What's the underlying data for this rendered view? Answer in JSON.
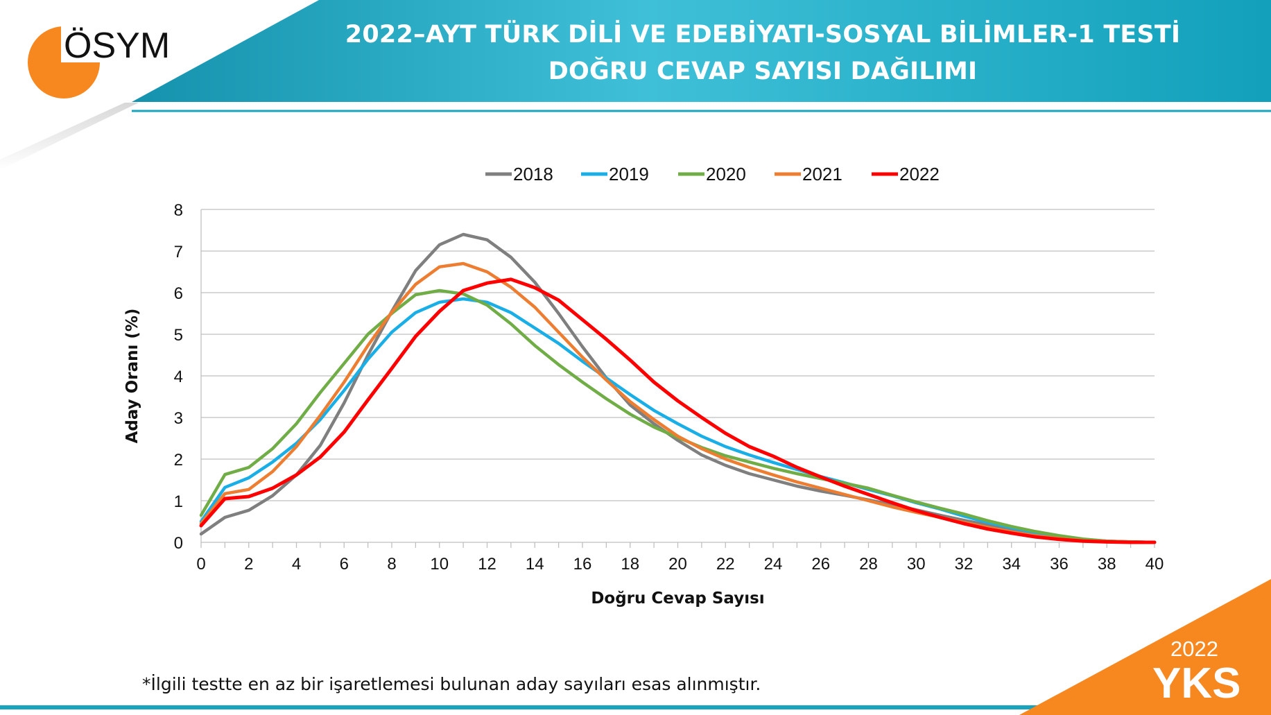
{
  "header": {
    "logo_text": "ÖSYM",
    "title_line1": "2022–AYT TÜRK DİLİ VE EDEBİYATI-SOSYAL BİLİMLER-1 TESTİ",
    "title_line2": "DOĞRU CEVAP SAYISI DAĞILIMI"
  },
  "footer": {
    "footnote": "*İlgili testte en az bir işaretlemesi bulunan aday sayıları esas alınmıştır.",
    "yks_year": "2022",
    "yks_label": "YKS"
  },
  "colors": {
    "header_teal": "#1aa3bd",
    "accent_orange": "#f7871f",
    "bottom_line": "#1aa3bd"
  },
  "chart_data": {
    "type": "line",
    "xlabel": "Doğru Cevap Sayısı",
    "ylabel": "Aday Oranı (%)",
    "xlim": [
      0,
      40
    ],
    "ylim": [
      0,
      8
    ],
    "x_ticks": [
      0,
      2,
      4,
      6,
      8,
      10,
      12,
      14,
      16,
      18,
      20,
      22,
      24,
      26,
      28,
      30,
      32,
      34,
      36,
      38,
      40
    ],
    "y_ticks": [
      0,
      1,
      2,
      3,
      4,
      5,
      6,
      7,
      8
    ],
    "grid": "horizontal",
    "legend": "top-center",
    "x": [
      0,
      1,
      2,
      3,
      4,
      5,
      6,
      7,
      8,
      9,
      10,
      11,
      12,
      13,
      14,
      15,
      16,
      17,
      18,
      19,
      20,
      21,
      22,
      23,
      24,
      25,
      26,
      27,
      28,
      29,
      30,
      31,
      32,
      33,
      34,
      35,
      36,
      37,
      38,
      39,
      40
    ],
    "series": [
      {
        "name": "2018",
        "color": "#7f7f7f",
        "values": [
          0.2,
          0.6,
          0.77,
          1.12,
          1.62,
          2.33,
          3.35,
          4.5,
          5.55,
          6.53,
          7.15,
          7.4,
          7.27,
          6.85,
          6.25,
          5.5,
          4.7,
          3.95,
          3.3,
          2.85,
          2.45,
          2.1,
          1.85,
          1.65,
          1.5,
          1.35,
          1.23,
          1.13,
          1.02,
          0.9,
          0.78,
          0.65,
          0.53,
          0.42,
          0.3,
          0.2,
          0.12,
          0.06,
          0.03,
          0.01,
          0.0
        ]
      },
      {
        "name": "2019",
        "color": "#1aaee6",
        "values": [
          0.5,
          1.32,
          1.55,
          1.93,
          2.38,
          2.95,
          3.65,
          4.4,
          5.05,
          5.52,
          5.77,
          5.85,
          5.77,
          5.52,
          5.15,
          4.78,
          4.35,
          3.95,
          3.55,
          3.17,
          2.85,
          2.55,
          2.3,
          2.1,
          1.92,
          1.75,
          1.58,
          1.43,
          1.27,
          1.12,
          0.95,
          0.8,
          0.63,
          0.48,
          0.35,
          0.23,
          0.14,
          0.07,
          0.03,
          0.01,
          0.0
        ]
      },
      {
        "name": "2020",
        "color": "#70ad47",
        "values": [
          0.65,
          1.63,
          1.8,
          2.25,
          2.85,
          3.6,
          4.3,
          5.0,
          5.5,
          5.95,
          6.05,
          5.97,
          5.7,
          5.25,
          4.73,
          4.27,
          3.85,
          3.45,
          3.08,
          2.77,
          2.52,
          2.28,
          2.08,
          1.93,
          1.78,
          1.65,
          1.53,
          1.42,
          1.3,
          1.13,
          0.97,
          0.82,
          0.68,
          0.52,
          0.38,
          0.26,
          0.16,
          0.08,
          0.03,
          0.01,
          0.0
        ]
      },
      {
        "name": "2021",
        "color": "#ed7d31",
        "values": [
          0.45,
          1.17,
          1.27,
          1.7,
          2.3,
          3.05,
          3.85,
          4.73,
          5.53,
          6.2,
          6.62,
          6.7,
          6.5,
          6.13,
          5.65,
          5.05,
          4.45,
          3.9,
          3.38,
          2.95,
          2.55,
          2.25,
          2.0,
          1.8,
          1.62,
          1.45,
          1.3,
          1.15,
          1.0,
          0.85,
          0.72,
          0.6,
          0.48,
          0.36,
          0.25,
          0.16,
          0.09,
          0.04,
          0.02,
          0.01,
          0.0
        ]
      },
      {
        "name": "2022",
        "color": "#ff0000",
        "values": [
          0.4,
          1.05,
          1.1,
          1.3,
          1.62,
          2.05,
          2.65,
          3.42,
          4.18,
          4.95,
          5.55,
          6.05,
          6.23,
          6.32,
          6.12,
          5.82,
          5.35,
          4.88,
          4.38,
          3.85,
          3.4,
          3.0,
          2.62,
          2.3,
          2.07,
          1.8,
          1.57,
          1.35,
          1.15,
          0.95,
          0.76,
          0.6,
          0.45,
          0.32,
          0.22,
          0.13,
          0.07,
          0.03,
          0.01,
          0.0,
          0.0
        ]
      }
    ]
  }
}
